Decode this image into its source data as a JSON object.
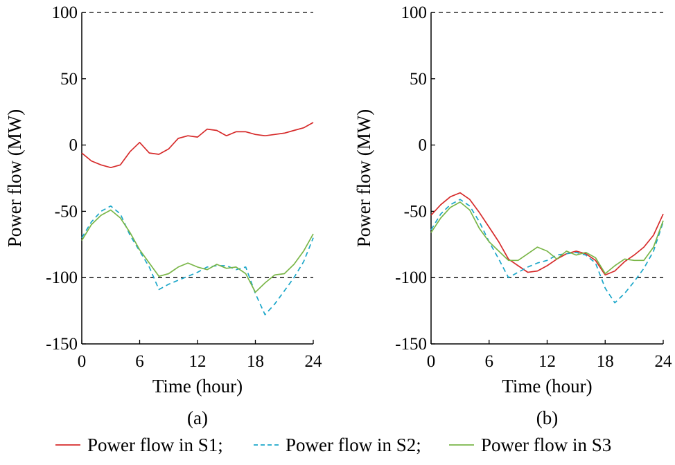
{
  "chart_data": [
    {
      "type": "line",
      "panel_label": "(a)",
      "xlabel": "Time (hour)",
      "ylabel": "Power flow (MW)",
      "xlim": [
        0,
        24
      ],
      "ylim": [
        -150,
        100
      ],
      "xticks": [
        0,
        6,
        12,
        18,
        24
      ],
      "yticks": [
        100,
        50,
        0,
        -50,
        -100,
        -150
      ],
      "reference_lines": [
        100,
        -100
      ],
      "x": [
        0,
        1,
        2,
        3,
        4,
        5,
        6,
        7,
        8,
        9,
        10,
        11,
        12,
        13,
        14,
        15,
        16,
        17,
        18,
        19,
        20,
        21,
        22,
        23,
        24
      ],
      "series": [
        {
          "name": "Power flow in S1",
          "color": "#d62a2a",
          "style": "solid",
          "values": [
            -6,
            -12,
            -15,
            -17,
            -15,
            -5,
            2,
            -6,
            -7,
            -3,
            5,
            7,
            6,
            12,
            11,
            7,
            10,
            10,
            8,
            7,
            8,
            9,
            11,
            13,
            17
          ]
        },
        {
          "name": "Power flow in S2",
          "color": "#1aa6c9",
          "style": "dashed",
          "values": [
            -70,
            -58,
            -50,
            -46,
            -52,
            -68,
            -80,
            -92,
            -109,
            -105,
            -102,
            -99,
            -96,
            -92,
            -91,
            -91,
            -94,
            -92,
            -112,
            -128,
            -120,
            -110,
            -100,
            -88,
            -70
          ]
        },
        {
          "name": "Power flow in S3",
          "color": "#7ab648",
          "style": "solid",
          "values": [
            -72,
            -60,
            -53,
            -49,
            -55,
            -66,
            -79,
            -89,
            -99,
            -97,
            -92,
            -89,
            -92,
            -94,
            -90,
            -93,
            -92,
            -97,
            -111,
            -104,
            -98,
            -97,
            -90,
            -80,
            -67
          ]
        }
      ]
    },
    {
      "type": "line",
      "panel_label": "(b)",
      "xlabel": "Time (hour)",
      "ylabel": "Power flow (MW)",
      "xlim": [
        0,
        24
      ],
      "ylim": [
        -150,
        100
      ],
      "xticks": [
        0,
        6,
        12,
        18,
        24
      ],
      "yticks": [
        100,
        50,
        0,
        -50,
        -100,
        -150
      ],
      "reference_lines": [
        100,
        -100
      ],
      "x": [
        0,
        1,
        2,
        3,
        4,
        5,
        6,
        7,
        8,
        9,
        10,
        11,
        12,
        13,
        14,
        15,
        16,
        17,
        18,
        19,
        20,
        21,
        22,
        23,
        24
      ],
      "series": [
        {
          "name": "Power flow in S1",
          "color": "#d62a2a",
          "style": "solid",
          "values": [
            -53,
            -45,
            -39,
            -36,
            -41,
            -51,
            -62,
            -73,
            -86,
            -91,
            -96,
            -95,
            -91,
            -86,
            -82,
            -80,
            -82,
            -87,
            -98,
            -95,
            -88,
            -83,
            -77,
            -68,
            -52
          ]
        },
        {
          "name": "Power flow in S2",
          "color": "#1aa6c9",
          "style": "dashed",
          "values": [
            -64,
            -52,
            -45,
            -41,
            -46,
            -58,
            -73,
            -86,
            -100,
            -96,
            -92,
            -89,
            -87,
            -83,
            -82,
            -81,
            -83,
            -89,
            -108,
            -119,
            -112,
            -103,
            -93,
            -80,
            -58
          ]
        },
        {
          "name": "Power flow in S3",
          "color": "#7ab648",
          "style": "solid",
          "values": [
            -66,
            -55,
            -47,
            -43,
            -49,
            -63,
            -73,
            -80,
            -87,
            -87,
            -82,
            -77,
            -80,
            -86,
            -80,
            -83,
            -81,
            -85,
            -97,
            -91,
            -86,
            -87,
            -87,
            -77,
            -57
          ]
        }
      ]
    }
  ],
  "legend": {
    "items": [
      {
        "label": "Power flow in S1;",
        "color": "#d62a2a",
        "style": "solid"
      },
      {
        "label": "Power flow in S2;",
        "color": "#1aa6c9",
        "style": "dashed"
      },
      {
        "label": "Power flow in S3",
        "color": "#7ab648",
        "style": "solid"
      }
    ]
  }
}
